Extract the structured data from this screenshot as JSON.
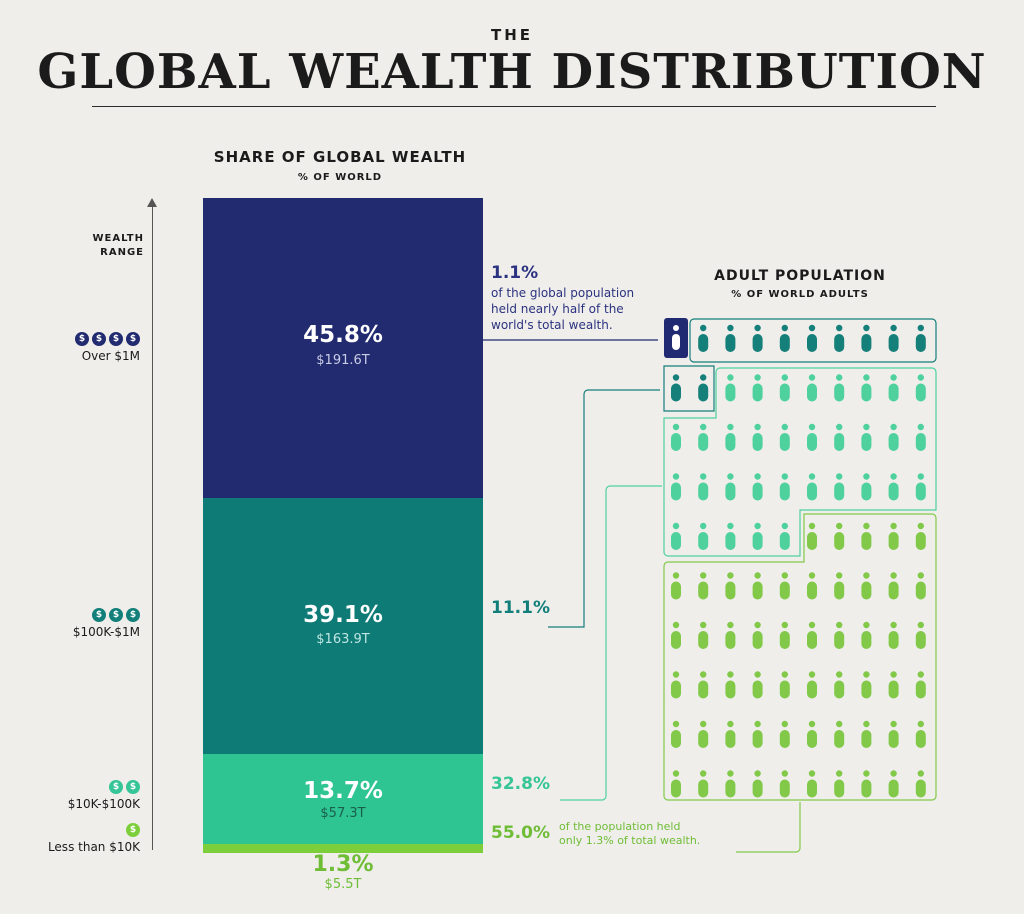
{
  "header": {
    "title_small": "THE",
    "title_main": "GLOBAL WEALTH DISTRIBUTION"
  },
  "wealth_chart": {
    "title": "SHARE OF GLOBAL WEALTH",
    "subtitle": "% OF WORLD"
  },
  "axis": {
    "label": "WEALTH\nRANGE"
  },
  "population_chart": {
    "title": "ADULT POPULATION",
    "subtitle": "% OF WORLD ADULTS"
  },
  "tiers": [
    {
      "label": "Over $1M",
      "coins": 4,
      "wealth_pct": "45.8%",
      "wealth_amt": "$191.6T",
      "pop_pct": "1.1%",
      "color": "#222a70",
      "coin_color": "#222a70",
      "icon_color": "#1f2a73"
    },
    {
      "label": "$100K-$1M",
      "coins": 3,
      "wealth_pct": "39.1%",
      "wealth_amt": "$163.9T",
      "pop_pct": "11.1%",
      "color": "#0e7b76",
      "coin_color": "#127f7a",
      "icon_color": "#157f7a"
    },
    {
      "label": "$10K-$100K",
      "coins": 2,
      "wealth_pct": "13.7%",
      "wealth_amt": "$57.3T",
      "pop_pct": "32.8%",
      "color": "#2ec592",
      "coin_color": "#35c596",
      "icon_color": "#4fd19e"
    },
    {
      "label": "Less than $10K",
      "coins": 1,
      "wealth_pct": "1.3%",
      "wealth_amt": "$5.5T",
      "pop_pct": "55.0%",
      "color": "#7ccf3a",
      "coin_color": "#7ccf3a",
      "icon_color": "#82c94a"
    }
  ],
  "annotations": {
    "top_desc": "of the global population held nearly half of the world's total wealth.",
    "bottom_desc_a": "of the population held",
    "bottom_desc_b": "only 1.3% of total wealth."
  },
  "chart_data": [
    {
      "type": "bar",
      "title": "SHARE OF GLOBAL WEALTH",
      "ylabel": "% OF WORLD",
      "categories": [
        "Over $1M",
        "$100K-$1M",
        "$10K-$100K",
        "Less than $10K"
      ],
      "values": [
        45.8,
        39.1,
        13.7,
        1.3
      ],
      "amounts_trillions": [
        191.6,
        163.9,
        57.3,
        5.5
      ]
    },
    {
      "type": "table",
      "title": "ADULT POPULATION",
      "ylabel": "% OF WORLD ADULTS",
      "categories": [
        "Over $1M",
        "$100K-$1M",
        "$10K-$100K",
        "Less than $10K"
      ],
      "values": [
        1.1,
        11.1,
        32.8,
        55.0
      ],
      "icon_counts": [
        1,
        11,
        33,
        55
      ]
    }
  ]
}
